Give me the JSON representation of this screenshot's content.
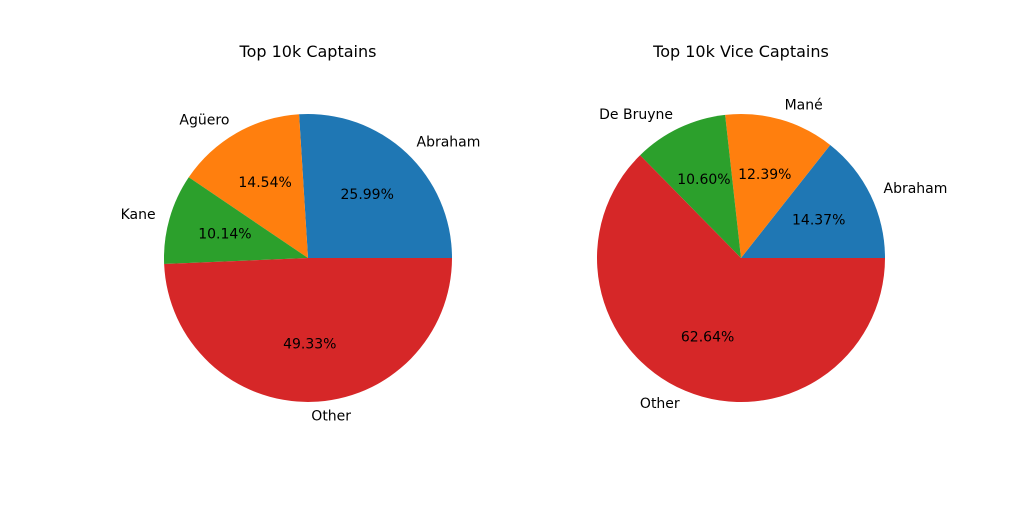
{
  "chart_data": [
    {
      "type": "pie",
      "title": "Top 10k Captains",
      "slices": [
        {
          "label": "Abraham",
          "value": 25.99,
          "pct_label": "25.99%",
          "color": "#1f77b4"
        },
        {
          "label": "Agüero",
          "value": 14.54,
          "pct_label": "14.54%",
          "color": "#ff7f0e"
        },
        {
          "label": "Kane",
          "value": 10.14,
          "pct_label": "10.14%",
          "color": "#2ca02c"
        },
        {
          "label": "Other",
          "value": 49.33,
          "pct_label": "49.33%",
          "color": "#d62728"
        }
      ]
    },
    {
      "type": "pie",
      "title": "Top 10k Vice Captains",
      "slices": [
        {
          "label": "Abraham",
          "value": 14.37,
          "pct_label": "14.37%",
          "color": "#1f77b4"
        },
        {
          "label": "Mané",
          "value": 12.39,
          "pct_label": "12.39%",
          "color": "#ff7f0e"
        },
        {
          "label": "De Bruyne",
          "value": 10.6,
          "pct_label": "10.60%",
          "color": "#2ca02c"
        },
        {
          "label": "Other",
          "value": 62.64,
          "pct_label": "62.64%",
          "color": "#d62728"
        }
      ]
    }
  ]
}
